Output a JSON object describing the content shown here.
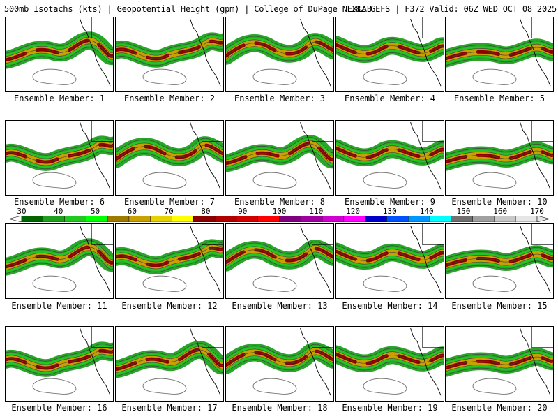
{
  "header": {
    "left": "500mb Isotachs (kts) | Geopotential Height (gpm) | College of DuPage NEXLAB",
    "right": "18Z GEFS | F372 Valid: 06Z WED OCT 08 2025"
  },
  "members": [
    {
      "label": "Ensemble Member: 1",
      "variant": 0
    },
    {
      "label": "Ensemble Member: 2",
      "variant": 1
    },
    {
      "label": "Ensemble Member: 3",
      "variant": 2
    },
    {
      "label": "Ensemble Member: 4",
      "variant": 3
    },
    {
      "label": "Ensemble Member: 5",
      "variant": 4
    },
    {
      "label": "Ensemble Member: 6",
      "variant": 1
    },
    {
      "label": "Ensemble Member: 7",
      "variant": 2
    },
    {
      "label": "Ensemble Member: 8",
      "variant": 0
    },
    {
      "label": "Ensemble Member: 9",
      "variant": 3
    },
    {
      "label": "Ensemble Member: 10",
      "variant": 4
    },
    {
      "label": "Ensemble Member: 11",
      "variant": 0
    },
    {
      "label": "Ensemble Member: 12",
      "variant": 1
    },
    {
      "label": "Ensemble Member: 13",
      "variant": 2
    },
    {
      "label": "Ensemble Member: 14",
      "variant": 3
    },
    {
      "label": "Ensemble Member: 15",
      "variant": 4
    },
    {
      "label": "Ensemble Member: 16",
      "variant": 1
    },
    {
      "label": "Ensemble Member: 17",
      "variant": 0
    },
    {
      "label": "Ensemble Member: 18",
      "variant": 2
    },
    {
      "label": "Ensemble Member: 19",
      "variant": 3
    },
    {
      "label": "Ensemble Member: 20",
      "variant": 4
    }
  ],
  "colorbar": {
    "ticks": [
      "30",
      "40",
      "50",
      "60",
      "70",
      "80",
      "90",
      "100",
      "110",
      "120",
      "130",
      "140",
      "150",
      "160",
      "170"
    ],
    "colors": [
      "#006400",
      "#1ea01e",
      "#22c822",
      "#00ff00",
      "#a07a00",
      "#c8a000",
      "#e6d200",
      "#ffff00",
      "#8b0000",
      "#b00000",
      "#d00000",
      "#ff0000",
      "#800080",
      "#a000a0",
      "#d000d0",
      "#ff00ff",
      "#0000c8",
      "#0050ff",
      "#0096ff",
      "#00ffff",
      "#707070",
      "#a0a0a0",
      "#c8c8c8",
      "#e6e6e6"
    ]
  }
}
